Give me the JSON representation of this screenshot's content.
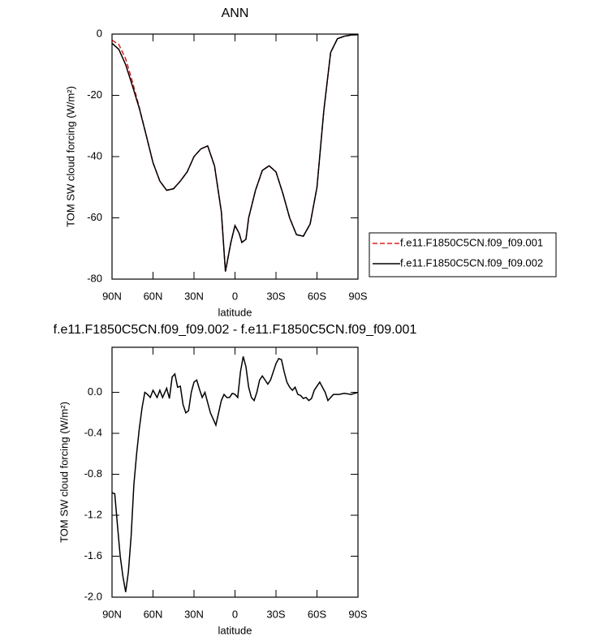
{
  "chart_data": [
    {
      "type": "line",
      "title": "ANN",
      "xlabel": "latitude",
      "ylabel": "TOM SW cloud forcing (W/m²)",
      "x": [
        90,
        85,
        80,
        75,
        70,
        65,
        60,
        55,
        50,
        45,
        40,
        35,
        30,
        25,
        20,
        15,
        10,
        7,
        3,
        0,
        -3,
        -5,
        -8,
        -10,
        -15,
        -20,
        -25,
        -30,
        -35,
        -40,
        -45,
        -50,
        -55,
        -60,
        -65,
        -70,
        -75,
        -80,
        -85,
        -90
      ],
      "series": [
        {
          "name": "f.e11.F1850C5CN.f09_f09.001",
          "color": "#e31a1c",
          "dashed": true,
          "values": [
            -2,
            -3.4,
            -8.1,
            -15.6,
            -24,
            -33,
            -42,
            -48,
            -51,
            -50.5,
            -48,
            -45,
            -40,
            -37.5,
            -36.5,
            -43,
            -58,
            -77.5,
            -68,
            -62.5,
            -65,
            -68,
            -67,
            -60,
            -51,
            -44.5,
            -43,
            -45,
            -52,
            -60,
            -65.5,
            -66,
            -62,
            -50,
            -25,
            -6,
            -1.5,
            -0.7,
            -0.3,
            -0.2
          ]
        },
        {
          "name": "f.e11.F1850C5CN.f09_f09.002",
          "color": "#000000",
          "dashed": false,
          "values": [
            -3,
            -5,
            -10,
            -17,
            -24.3,
            -33,
            -42,
            -48,
            -51,
            -50.5,
            -48,
            -45,
            -40,
            -37.5,
            -36.5,
            -43,
            -58,
            -77.5,
            -68,
            -62.5,
            -65,
            -68,
            -67,
            -60,
            -51,
            -44.5,
            -43,
            -45,
            -52,
            -60,
            -65.5,
            -66,
            -62,
            -50,
            -25,
            -6,
            -1.5,
            -0.7,
            -0.3,
            -0.2
          ]
        }
      ],
      "xlim": [
        90,
        -90
      ],
      "xticks": [
        {
          "value": 90,
          "label": "90N"
        },
        {
          "value": 60,
          "label": "60N"
        },
        {
          "value": 30,
          "label": "30N"
        },
        0,
        {
          "value": -30,
          "label": "30S"
        },
        {
          "value": -60,
          "label": "60S"
        },
        {
          "value": -90,
          "label": "90S"
        }
      ],
      "ylim": [
        -80,
        0
      ],
      "yticks": [
        0,
        -20,
        -40,
        -60,
        -80
      ],
      "legend": "right"
    },
    {
      "type": "line",
      "title": "f.e11.F1850C5CN.f09_f09.002 - f.e11.F1850C5CN.f09_f09.001",
      "xlabel": "latitude",
      "ylabel": "TOM SW cloud forcing (W/m²)",
      "x": [
        90,
        88,
        86,
        84,
        82,
        80,
        78,
        76,
        74,
        72,
        70,
        68,
        66,
        64,
        62,
        60,
        57,
        55,
        53,
        50,
        48,
        46,
        44,
        42,
        40,
        38,
        36,
        34,
        32,
        30,
        28,
        26,
        24,
        22,
        20,
        18,
        16,
        14,
        12,
        10,
        8,
        6,
        4,
        2,
        0,
        -2,
        -4,
        -6,
        -8,
        -10,
        -12,
        -14,
        -16,
        -18,
        -20,
        -22,
        -24,
        -26,
        -28,
        -30,
        -32,
        -34,
        -36,
        -38,
        -40,
        -42,
        -44,
        -46,
        -48,
        -50,
        -52,
        -54,
        -56,
        -58,
        -60,
        -62,
        -64,
        -66,
        -68,
        -70,
        -72,
        -76,
        -80,
        -85,
        -90
      ],
      "values": [
        -0.98,
        -0.99,
        -1.3,
        -1.6,
        -1.8,
        -1.95,
        -1.75,
        -1.4,
        -0.9,
        -0.6,
        -0.35,
        -0.15,
        0.0,
        -0.02,
        -0.05,
        0.02,
        -0.05,
        0.02,
        -0.05,
        0.04,
        -0.06,
        0.15,
        0.18,
        0.05,
        0.06,
        -0.12,
        -0.2,
        -0.18,
        0.0,
        0.1,
        0.12,
        0.03,
        -0.05,
        0.0,
        -0.1,
        -0.2,
        -0.26,
        -0.32,
        -0.2,
        -0.08,
        -0.02,
        -0.05,
        -0.05,
        -0.01,
        -0.02,
        -0.05,
        0.2,
        0.35,
        0.25,
        0.05,
        -0.05,
        -0.08,
        0.0,
        0.12,
        0.16,
        0.12,
        0.08,
        0.12,
        0.2,
        0.28,
        0.33,
        0.32,
        0.2,
        0.1,
        0.05,
        0.02,
        0.05,
        -0.02,
        -0.03,
        -0.06,
        -0.05,
        -0.08,
        -0.06,
        0.02,
        0.06,
        0.1,
        0.05,
        0.0,
        -0.08,
        -0.05,
        -0.02,
        -0.02,
        -0.01,
        -0.02,
        0.0
      ],
      "color": "#000000",
      "xlim": [
        90,
        -90
      ],
      "xticks": [
        {
          "value": 90,
          "label": "90N"
        },
        {
          "value": 60,
          "label": "60N"
        },
        {
          "value": 30,
          "label": "30N"
        },
        0,
        {
          "value": -30,
          "label": "30S"
        },
        {
          "value": -60,
          "label": "60S"
        },
        {
          "value": -90,
          "label": "90S"
        }
      ],
      "ylim": [
        -2.0,
        0.44
      ],
      "yticks": [
        {
          "value": 0,
          "label": "0.0"
        },
        -0.4,
        -0.8,
        -1.2,
        -1.6,
        {
          "value": -2,
          "label": "-2.0"
        }
      ]
    }
  ]
}
